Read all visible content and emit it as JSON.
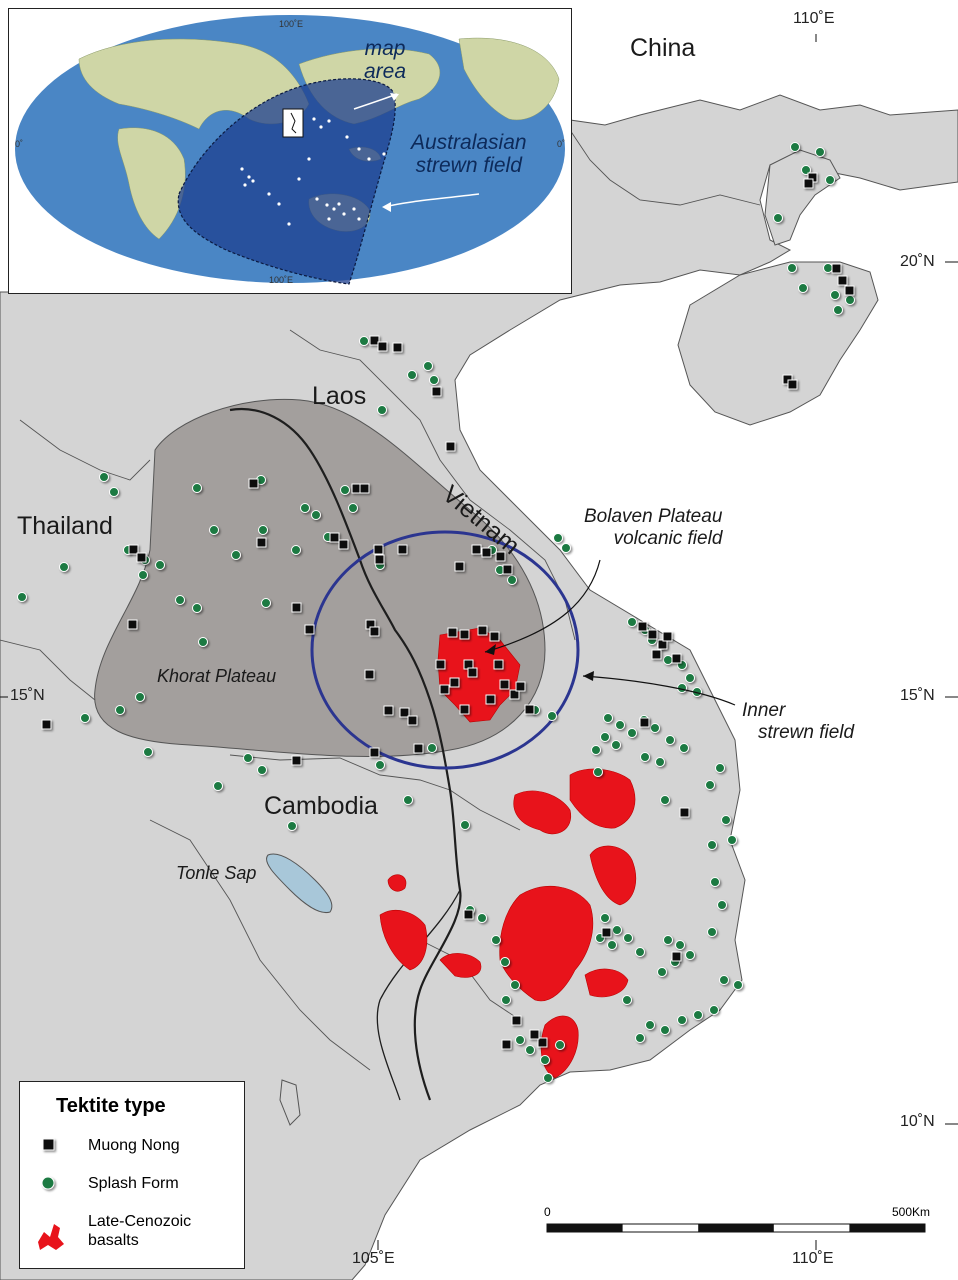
{
  "countries": {
    "china": "China",
    "laos": "Laos",
    "vietnam": "Vietnam",
    "thailand": "Thailand",
    "cambodia": "Cambodia"
  },
  "features": {
    "khorat": "Khorat Plateau",
    "tonle_sap": "Tonle Sap",
    "bolaven_line1": "Bolaven Plateau",
    "bolaven_line2": "volcanic field",
    "inner_line1": "Inner",
    "inner_line2": "strewn field"
  },
  "grid_labels": {
    "lon_110_top": "110˚E",
    "lat_20": "20˚N",
    "lat_15_left": "15˚N",
    "lat_15_right": "15˚N",
    "lat_10": "10˚N",
    "lon_105_bottom": "105˚E",
    "lon_110_bottom": "110˚E"
  },
  "inset": {
    "map_area_line1": "map",
    "map_area_line2": "area",
    "strewn_line1": "Australasian",
    "strewn_line2": "strewn field",
    "grid_100_top": "100˚E",
    "grid_100_bottom": "100˚E",
    "grid_0_left": "0˚",
    "grid_0_right": "0˚"
  },
  "legend": {
    "title": "Tektite type",
    "muong_nong": "Muong Nong",
    "splash_form": "Splash Form",
    "basalts_line1": "Late-Cenozoic",
    "basalts_line2": "basalts"
  },
  "scale": {
    "start": "0",
    "end": "500Km"
  },
  "colors": {
    "land": "#d4d4d4",
    "sea": "#ffffff",
    "plateau": "#9a9593",
    "inner_ellipse": "#2b3590",
    "basalt": "#e8131b",
    "splash": "#1a7a43",
    "muong_nong": "#111111",
    "inset_ocean": "#4a86c5",
    "strewn_field": "#1d3f8f"
  }
}
